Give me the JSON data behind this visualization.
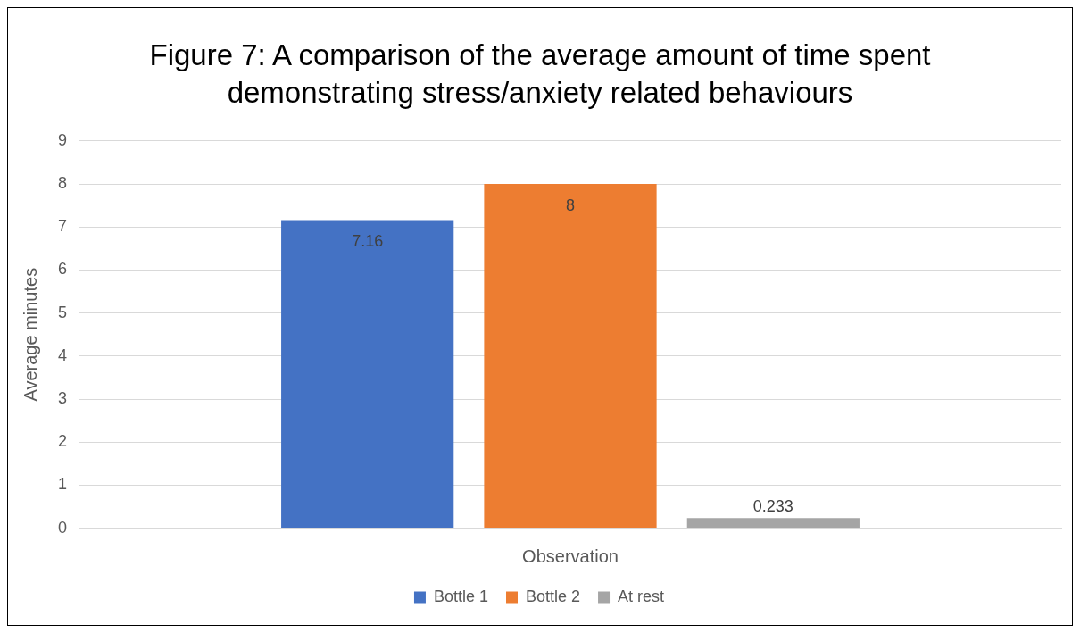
{
  "chart_data": {
    "type": "bar",
    "title": "Figure 7: A comparison of the average amount of time spent demonstrating stress/anxiety related behaviours",
    "xlabel": "Observation",
    "ylabel": "Average minutes",
    "categories": [
      null
    ],
    "series": [
      {
        "name": "Bottle 1",
        "color": "#4472c4",
        "values": [
          7.16
        ]
      },
      {
        "name": "Bottle 2",
        "color": "#ed7d31",
        "values": [
          8
        ]
      },
      {
        "name": "At rest",
        "color": "#a5a5a5",
        "values": [
          0.233
        ]
      }
    ],
    "ylim": [
      0,
      9
    ],
    "yticks": [
      0,
      1,
      2,
      3,
      4,
      5,
      6,
      7,
      8,
      9
    ],
    "grid": "y",
    "legend": "bottom",
    "data_labels": true
  }
}
